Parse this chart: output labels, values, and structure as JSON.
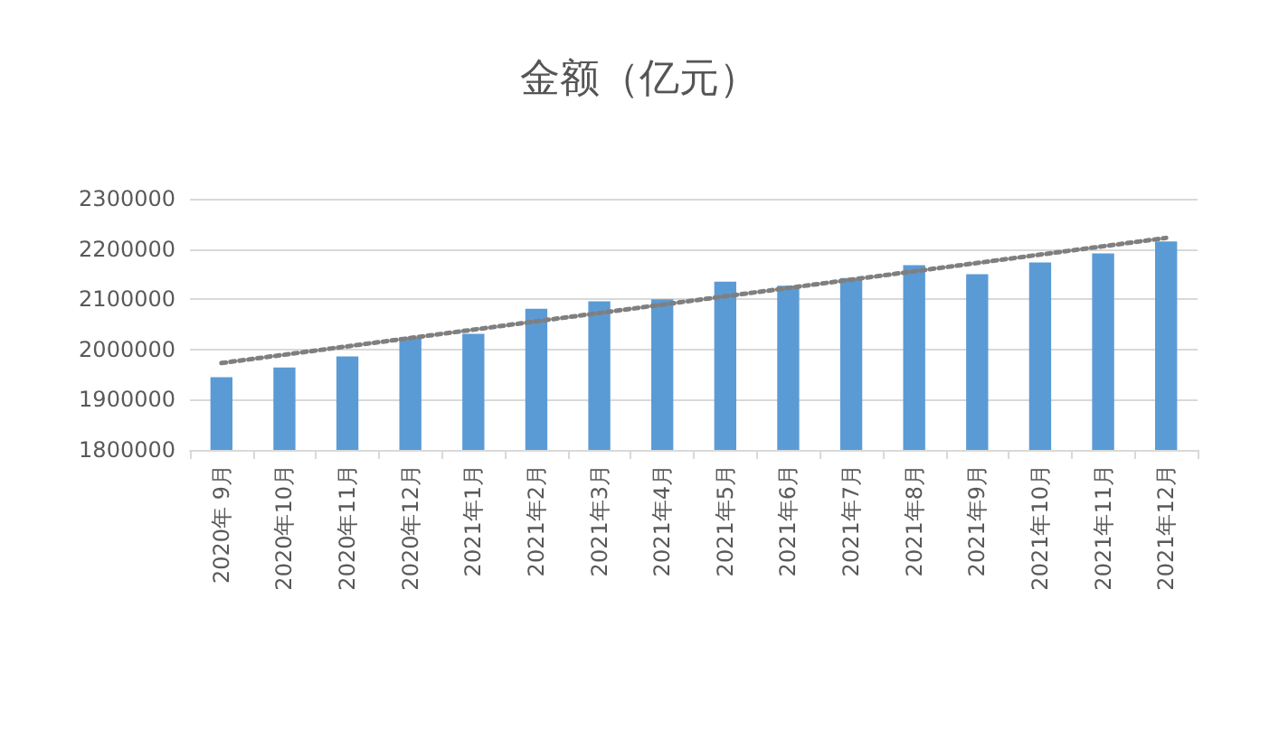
{
  "chart_data": {
    "type": "bar",
    "title": "金额（亿元）",
    "categories": [
      "2020年 9月",
      "2020年10月",
      "2020年11月",
      "2020年12月",
      "2021年1月",
      "2021年2月",
      "2021年3月",
      "2021年4月",
      "2021年5月",
      "2021年6月",
      "2021年7月",
      "2021年8月",
      "2021年9月",
      "2021年10月",
      "2021年11月",
      "2021年12月"
    ],
    "series": [
      {
        "color": "#5b9bd5",
        "values": [
          1945000,
          1964000,
          1986000,
          2025000,
          2031000,
          2081000,
          2096000,
          2100000,
          2135000,
          2127000,
          2142000,
          2168000,
          2150000,
          2173000,
          2191000,
          2215000
        ]
      },
      {
        "type": "line",
        "color": "#7f7f7f",
        "line_style": "dotted",
        "marker": "none",
        "x": [
          "2020年 9月",
          "2021年12月"
        ],
        "values": [
          1973000,
          2222000
        ]
      }
    ],
    "ylim": [
      1800000,
      2300000
    ],
    "yticks": [
      1800000,
      1900000,
      2000000,
      2100000,
      2200000,
      2300000
    ],
    "grid": "y"
  }
}
